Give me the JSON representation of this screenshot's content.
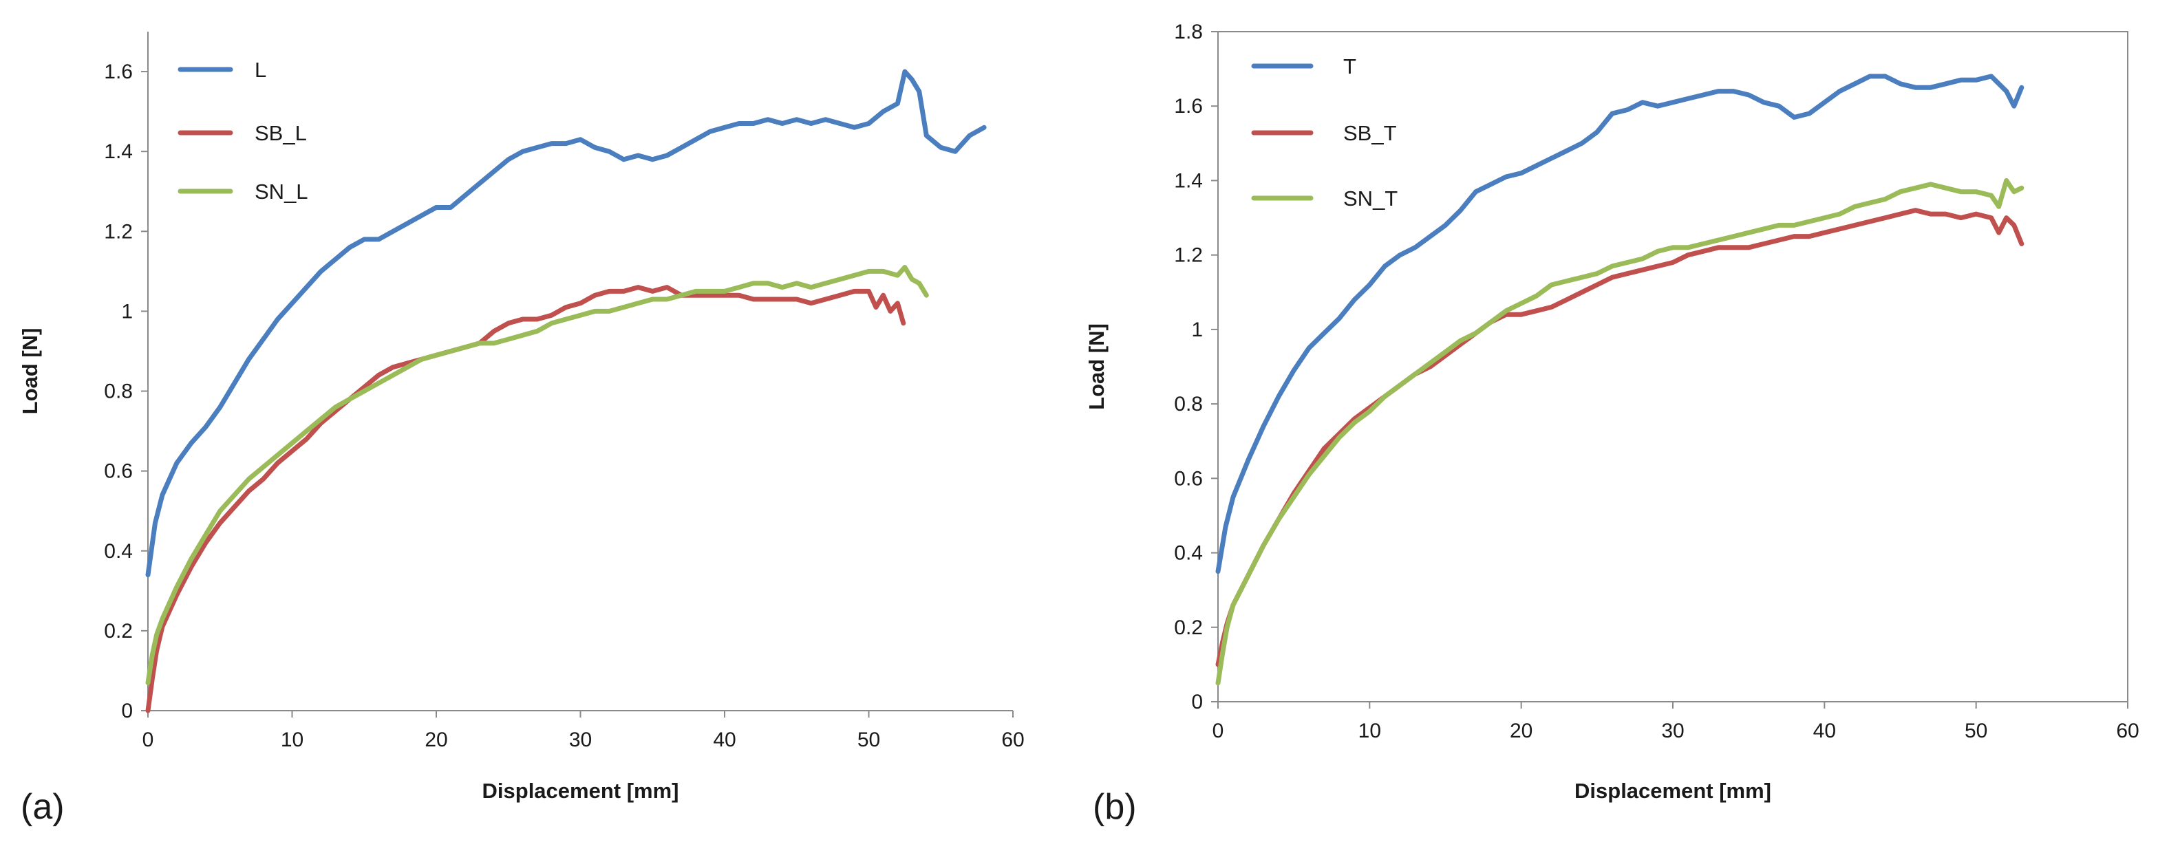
{
  "chart_data": [
    {
      "type": "line",
      "panel_label": "(a)",
      "xlabel": "Displacement  [mm]",
      "ylabel": "Load [N]",
      "xlim": [
        0,
        60
      ],
      "ylim": [
        0,
        1.7
      ],
      "xticks": [
        0,
        10,
        20,
        30,
        40,
        50,
        60
      ],
      "xtick_labels": [
        "0",
        "10",
        "20",
        "30",
        "40",
        "50",
        "60"
      ],
      "yticks": [
        0,
        0.2,
        0.4,
        0.6,
        0.8,
        1,
        1.2,
        1.4,
        1.6
      ],
      "ytick_labels": [
        "0",
        "0.2",
        "0.4",
        "0.6",
        "0.8",
        "1",
        "1.2",
        "1.4",
        "1.6"
      ],
      "frame": false,
      "legend_position": "top-left",
      "series": [
        {
          "name": "L",
          "color": "#4a7ebf",
          "x": [
            0,
            0.5,
            1,
            2,
            3,
            4,
            5,
            6,
            7,
            8,
            9,
            10,
            11,
            12,
            13,
            14,
            15,
            16,
            17,
            18,
            19,
            20,
            21,
            22,
            23,
            24,
            25,
            26,
            27,
            28,
            29,
            30,
            31,
            32,
            33,
            34,
            35,
            36,
            37,
            38,
            39,
            40,
            41,
            42,
            43,
            44,
            45,
            46,
            47,
            48,
            49,
            50,
            51,
            52,
            52.5,
            53,
            53.5,
            54,
            55,
            56,
            57,
            58
          ],
          "y": [
            0.34,
            0.47,
            0.54,
            0.62,
            0.67,
            0.71,
            0.76,
            0.82,
            0.88,
            0.93,
            0.98,
            1.02,
            1.06,
            1.1,
            1.13,
            1.16,
            1.18,
            1.18,
            1.2,
            1.22,
            1.24,
            1.26,
            1.26,
            1.29,
            1.32,
            1.35,
            1.38,
            1.4,
            1.41,
            1.42,
            1.42,
            1.43,
            1.41,
            1.4,
            1.38,
            1.39,
            1.38,
            1.39,
            1.41,
            1.43,
            1.45,
            1.46,
            1.47,
            1.47,
            1.48,
            1.47,
            1.48,
            1.47,
            1.48,
            1.47,
            1.46,
            1.47,
            1.5,
            1.52,
            1.6,
            1.58,
            1.55,
            1.44,
            1.41,
            1.4,
            1.44,
            1.46
          ]
        },
        {
          "name": "SB_L",
          "color": "#c0504d",
          "x": [
            0,
            0.3,
            0.6,
            1,
            2,
            3,
            4,
            5,
            6,
            7,
            8,
            9,
            10,
            11,
            12,
            13,
            14,
            15,
            16,
            17,
            18,
            19,
            20,
            21,
            22,
            23,
            24,
            25,
            26,
            27,
            28,
            29,
            30,
            31,
            32,
            33,
            34,
            35,
            36,
            37,
            38,
            39,
            40,
            41,
            42,
            43,
            44,
            45,
            46,
            47,
            48,
            49,
            50,
            50.5,
            51,
            51.5,
            52,
            52.4
          ],
          "y": [
            0,
            0.08,
            0.15,
            0.21,
            0.29,
            0.36,
            0.42,
            0.47,
            0.51,
            0.55,
            0.58,
            0.62,
            0.65,
            0.68,
            0.72,
            0.75,
            0.78,
            0.81,
            0.84,
            0.86,
            0.87,
            0.88,
            0.89,
            0.9,
            0.91,
            0.92,
            0.95,
            0.97,
            0.98,
            0.98,
            0.99,
            1.01,
            1.02,
            1.04,
            1.05,
            1.05,
            1.06,
            1.05,
            1.06,
            1.04,
            1.04,
            1.04,
            1.04,
            1.04,
            1.03,
            1.03,
            1.03,
            1.03,
            1.02,
            1.03,
            1.04,
            1.05,
            1.05,
            1.01,
            1.04,
            1.0,
            1.02,
            0.97
          ]
        },
        {
          "name": "SN_L",
          "color": "#9bbb59",
          "x": [
            0,
            0.3,
            0.6,
            1,
            2,
            3,
            4,
            5,
            6,
            7,
            8,
            9,
            10,
            11,
            12,
            13,
            14,
            15,
            16,
            17,
            18,
            19,
            20,
            21,
            22,
            23,
            24,
            25,
            26,
            27,
            28,
            29,
            30,
            31,
            32,
            33,
            34,
            35,
            36,
            37,
            38,
            39,
            40,
            41,
            42,
            43,
            44,
            45,
            46,
            47,
            48,
            49,
            50,
            51,
            52,
            52.5,
            53,
            53.5,
            54
          ],
          "y": [
            0.07,
            0.14,
            0.19,
            0.23,
            0.31,
            0.38,
            0.44,
            0.5,
            0.54,
            0.58,
            0.61,
            0.64,
            0.67,
            0.7,
            0.73,
            0.76,
            0.78,
            0.8,
            0.82,
            0.84,
            0.86,
            0.88,
            0.89,
            0.9,
            0.91,
            0.92,
            0.92,
            0.93,
            0.94,
            0.95,
            0.97,
            0.98,
            0.99,
            1.0,
            1.0,
            1.01,
            1.02,
            1.03,
            1.03,
            1.04,
            1.05,
            1.05,
            1.05,
            1.06,
            1.07,
            1.07,
            1.06,
            1.07,
            1.06,
            1.07,
            1.08,
            1.09,
            1.1,
            1.1,
            1.09,
            1.11,
            1.08,
            1.07,
            1.04
          ]
        }
      ]
    },
    {
      "type": "line",
      "panel_label": "(b)",
      "xlabel": "Displacement  [mm]",
      "ylabel": "Load [N]",
      "xlim": [
        0,
        60
      ],
      "ylim": [
        0,
        1.8
      ],
      "xticks": [
        0,
        10,
        20,
        30,
        40,
        50,
        60
      ],
      "xtick_labels": [
        "0",
        "10",
        "20",
        "30",
        "40",
        "50",
        "60"
      ],
      "yticks": [
        0,
        0.2,
        0.4,
        0.6,
        0.8,
        1,
        1.2,
        1.4,
        1.6,
        1.8
      ],
      "ytick_labels": [
        "0",
        "0.2",
        "0.4",
        "0.6",
        "0.8",
        "1",
        "1.2",
        "1.4",
        "1.6",
        "1.8"
      ],
      "frame": true,
      "legend_position": "top-left",
      "series": [
        {
          "name": "T",
          "color": "#4a7ebf",
          "x": [
            0,
            0.5,
            1,
            2,
            3,
            4,
            5,
            6,
            7,
            8,
            9,
            10,
            11,
            12,
            13,
            14,
            15,
            16,
            17,
            18,
            19,
            20,
            21,
            22,
            23,
            24,
            25,
            26,
            27,
            28,
            29,
            30,
            31,
            32,
            33,
            34,
            35,
            36,
            37,
            38,
            39,
            40,
            41,
            42,
            43,
            44,
            45,
            46,
            47,
            48,
            49,
            50,
            51,
            52,
            52.5,
            53
          ],
          "y": [
            0.35,
            0.47,
            0.55,
            0.65,
            0.74,
            0.82,
            0.89,
            0.95,
            0.99,
            1.03,
            1.08,
            1.12,
            1.17,
            1.2,
            1.22,
            1.25,
            1.28,
            1.32,
            1.37,
            1.39,
            1.41,
            1.42,
            1.44,
            1.46,
            1.48,
            1.5,
            1.53,
            1.58,
            1.59,
            1.61,
            1.6,
            1.61,
            1.62,
            1.63,
            1.64,
            1.64,
            1.63,
            1.61,
            1.6,
            1.57,
            1.58,
            1.61,
            1.64,
            1.66,
            1.68,
            1.68,
            1.66,
            1.65,
            1.65,
            1.66,
            1.67,
            1.67,
            1.68,
            1.64,
            1.6,
            1.65
          ]
        },
        {
          "name": "SB_T",
          "color": "#c0504d",
          "x": [
            0,
            0.3,
            0.6,
            1,
            2,
            3,
            4,
            5,
            6,
            7,
            8,
            9,
            10,
            11,
            12,
            13,
            14,
            15,
            16,
            17,
            18,
            19,
            20,
            21,
            22,
            23,
            24,
            25,
            26,
            27,
            28,
            29,
            30,
            31,
            32,
            33,
            34,
            35,
            36,
            37,
            38,
            39,
            40,
            41,
            42,
            43,
            44,
            45,
            46,
            47,
            48,
            49,
            50,
            51,
            51.5,
            52,
            52.5,
            53
          ],
          "y": [
            0.1,
            0.16,
            0.21,
            0.26,
            0.34,
            0.42,
            0.49,
            0.56,
            0.62,
            0.68,
            0.72,
            0.76,
            0.79,
            0.82,
            0.85,
            0.88,
            0.9,
            0.93,
            0.96,
            0.99,
            1.02,
            1.04,
            1.04,
            1.05,
            1.06,
            1.08,
            1.1,
            1.12,
            1.14,
            1.15,
            1.16,
            1.17,
            1.18,
            1.2,
            1.21,
            1.22,
            1.22,
            1.22,
            1.23,
            1.24,
            1.25,
            1.25,
            1.26,
            1.27,
            1.28,
            1.29,
            1.3,
            1.31,
            1.32,
            1.31,
            1.31,
            1.3,
            1.31,
            1.3,
            1.26,
            1.3,
            1.28,
            1.23
          ]
        },
        {
          "name": "SN_T",
          "color": "#9bbb59",
          "x": [
            0,
            0.3,
            0.6,
            1,
            2,
            3,
            4,
            5,
            6,
            7,
            8,
            9,
            10,
            11,
            12,
            13,
            14,
            15,
            16,
            17,
            18,
            19,
            20,
            21,
            22,
            23,
            24,
            25,
            26,
            27,
            28,
            29,
            30,
            31,
            32,
            33,
            34,
            35,
            36,
            37,
            38,
            39,
            40,
            41,
            42,
            43,
            44,
            45,
            46,
            47,
            48,
            49,
            50,
            51,
            51.5,
            52,
            52.5,
            53
          ],
          "y": [
            0.05,
            0.13,
            0.2,
            0.26,
            0.34,
            0.42,
            0.49,
            0.55,
            0.61,
            0.66,
            0.71,
            0.75,
            0.78,
            0.82,
            0.85,
            0.88,
            0.91,
            0.94,
            0.97,
            0.99,
            1.02,
            1.05,
            1.07,
            1.09,
            1.12,
            1.13,
            1.14,
            1.15,
            1.17,
            1.18,
            1.19,
            1.21,
            1.22,
            1.22,
            1.23,
            1.24,
            1.25,
            1.26,
            1.27,
            1.28,
            1.28,
            1.29,
            1.3,
            1.31,
            1.33,
            1.34,
            1.35,
            1.37,
            1.38,
            1.39,
            1.38,
            1.37,
            1.37,
            1.36,
            1.33,
            1.4,
            1.37,
            1.38
          ]
        }
      ]
    }
  ]
}
